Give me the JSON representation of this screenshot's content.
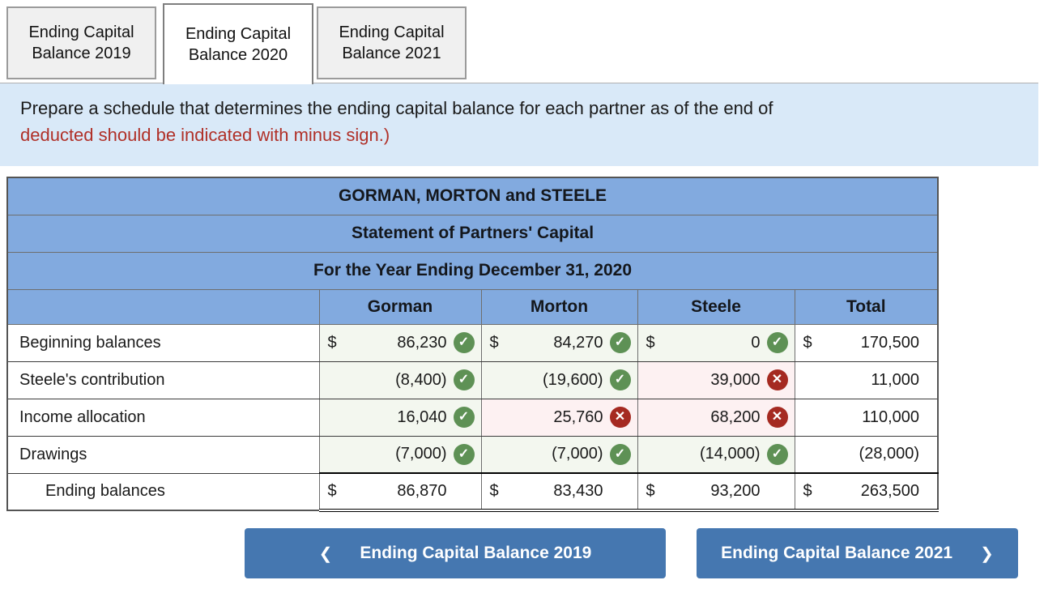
{
  "tabs": [
    {
      "label": "Ending Capital Balance 2019",
      "active": false
    },
    {
      "label": "Ending Capital Balance 2020",
      "active": true
    },
    {
      "label": "Ending Capital Balance 2021",
      "active": false
    }
  ],
  "instructions": {
    "line1": "Prepare a schedule that determines the ending capital balance for each partner as of the end of",
    "line2_red": "deducted should be indicated with minus sign.)"
  },
  "table": {
    "titles": [
      "GORMAN, MORTON and STEELE",
      "Statement of Partners' Capital",
      "For the Year Ending December 31, 2020"
    ],
    "columns": [
      "",
      "Gorman",
      "Morton",
      "Steele",
      "Total"
    ],
    "rows": [
      {
        "label": "Beginning balances",
        "indent": false,
        "total_row": false,
        "cells": [
          {
            "dollar": "$",
            "value": "86,230",
            "status": "correct"
          },
          {
            "dollar": "$",
            "value": "84,270",
            "status": "correct"
          },
          {
            "dollar": "$",
            "value": "0",
            "status": "correct"
          },
          {
            "dollar": "$",
            "value": "170,500"
          }
        ]
      },
      {
        "label": "Steele's contribution",
        "indent": false,
        "total_row": false,
        "cells": [
          {
            "value": "(8,400)",
            "status": "correct"
          },
          {
            "value": "(19,600)",
            "status": "correct"
          },
          {
            "value": "39,000",
            "status": "incorrect"
          },
          {
            "value": "11,000"
          }
        ]
      },
      {
        "label": "Income allocation",
        "indent": false,
        "total_row": false,
        "cells": [
          {
            "value": "16,040",
            "status": "correct"
          },
          {
            "value": "25,760",
            "status": "incorrect"
          },
          {
            "value": "68,200",
            "status": "incorrect"
          },
          {
            "value": "110,000"
          }
        ]
      },
      {
        "label": "Drawings",
        "indent": false,
        "total_row": false,
        "cells": [
          {
            "value": "(7,000)",
            "status": "correct"
          },
          {
            "value": "(7,000)",
            "status": "correct"
          },
          {
            "value": "(14,000)",
            "status": "correct"
          },
          {
            "value": "(28,000)"
          }
        ]
      },
      {
        "label": "Ending balances",
        "indent": true,
        "total_row": true,
        "cells": [
          {
            "dollar": "$",
            "value": "86,870"
          },
          {
            "dollar": "$",
            "value": "83,430"
          },
          {
            "dollar": "$",
            "value": "93,200"
          },
          {
            "dollar": "$",
            "value": "263,500"
          }
        ]
      }
    ]
  },
  "footer": {
    "prev_label": "Ending Capital Balance 2019",
    "prev_chevron": "❮",
    "next_label": "Ending Capital Balance 2021",
    "next_chevron": "❯"
  },
  "icons": {
    "correct": "✓",
    "incorrect": "✕"
  },
  "colors": {
    "header_blue": "#82aadf",
    "button_blue": "#4577b0",
    "correct_green": "#5e9155",
    "incorrect_red": "#a52a21",
    "correct_bg": "#f3f7ef",
    "incorrect_bg": "#fdf1f2",
    "instruction_bg": "#d9e9f8",
    "red_text": "#b03028"
  }
}
